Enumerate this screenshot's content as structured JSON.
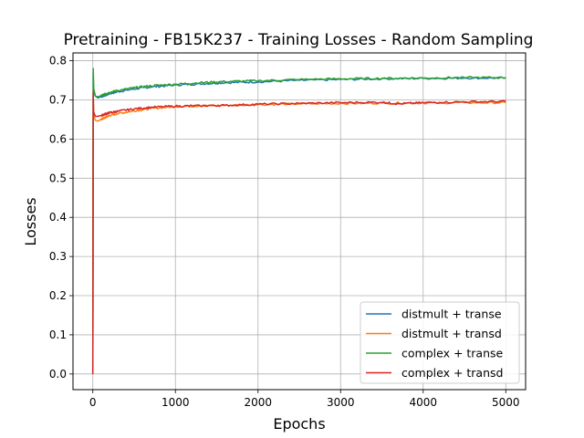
{
  "chart_data": {
    "type": "line",
    "title": "Pretraining - FB15K237 - Training Losses - Random Sampling",
    "xlabel": "Epochs",
    "ylabel": "Losses",
    "xlim": [
      -240,
      5240
    ],
    "ylim": [
      -0.04,
      0.82
    ],
    "xticks": [
      0,
      1000,
      2000,
      3000,
      4000,
      5000
    ],
    "xtick_labels": [
      "0",
      "1000",
      "2000",
      "3000",
      "4000",
      "5000"
    ],
    "yticks": [
      0.0,
      0.1,
      0.2,
      0.3,
      0.4,
      0.5,
      0.6,
      0.7,
      0.8
    ],
    "ytick_labels": [
      "0.0",
      "0.1",
      "0.2",
      "0.3",
      "0.4",
      "0.5",
      "0.6",
      "0.7",
      "0.8"
    ],
    "grid": true,
    "legend_position": "lower-right",
    "series": [
      {
        "name": "distmult + transe",
        "color": "#1f77b4",
        "x": [
          0,
          5,
          10,
          30,
          60,
          100,
          150,
          200,
          300,
          500,
          700,
          1000,
          1300,
          1600,
          2000,
          2500,
          3000,
          3500,
          4000,
          4500,
          5000
        ],
        "y": [
          0.0,
          0.77,
          0.72,
          0.71,
          0.705,
          0.708,
          0.712,
          0.716,
          0.721,
          0.728,
          0.733,
          0.738,
          0.741,
          0.744,
          0.746,
          0.75,
          0.752,
          0.754,
          0.755,
          0.756,
          0.756
        ]
      },
      {
        "name": "distmult + transd",
        "color": "#ff7f0e",
        "x": [
          0,
          5,
          10,
          30,
          60,
          100,
          150,
          200,
          300,
          500,
          700,
          1000,
          1300,
          1600,
          2000,
          2500,
          3000,
          3500,
          4000,
          4500,
          5000
        ],
        "y": [
          0.0,
          0.71,
          0.66,
          0.648,
          0.646,
          0.65,
          0.655,
          0.66,
          0.665,
          0.672,
          0.678,
          0.683,
          0.685,
          0.686,
          0.688,
          0.69,
          0.691,
          0.692,
          0.692,
          0.693,
          0.693
        ]
      },
      {
        "name": "complex + transe",
        "color": "#2ca02c",
        "x": [
          0,
          5,
          10,
          30,
          60,
          100,
          150,
          200,
          300,
          500,
          700,
          1000,
          1300,
          1600,
          2000,
          2500,
          3000,
          3500,
          4000,
          4500,
          5000
        ],
        "y": [
          0.0,
          0.78,
          0.73,
          0.71,
          0.708,
          0.711,
          0.715,
          0.719,
          0.724,
          0.731,
          0.736,
          0.74,
          0.744,
          0.747,
          0.749,
          0.752,
          0.754,
          0.755,
          0.756,
          0.757,
          0.757
        ]
      },
      {
        "name": "complex + transd",
        "color": "#d62728",
        "x": [
          0,
          5,
          10,
          30,
          60,
          100,
          150,
          200,
          300,
          500,
          700,
          1000,
          1300,
          1600,
          2000,
          2500,
          3000,
          3500,
          3700,
          4000,
          4500,
          5000
        ],
        "y": [
          0.0,
          0.72,
          0.67,
          0.658,
          0.658,
          0.66,
          0.664,
          0.667,
          0.671,
          0.677,
          0.681,
          0.684,
          0.685,
          0.686,
          0.689,
          0.691,
          0.693,
          0.694,
          0.69,
          0.693,
          0.695,
          0.696
        ]
      }
    ]
  }
}
